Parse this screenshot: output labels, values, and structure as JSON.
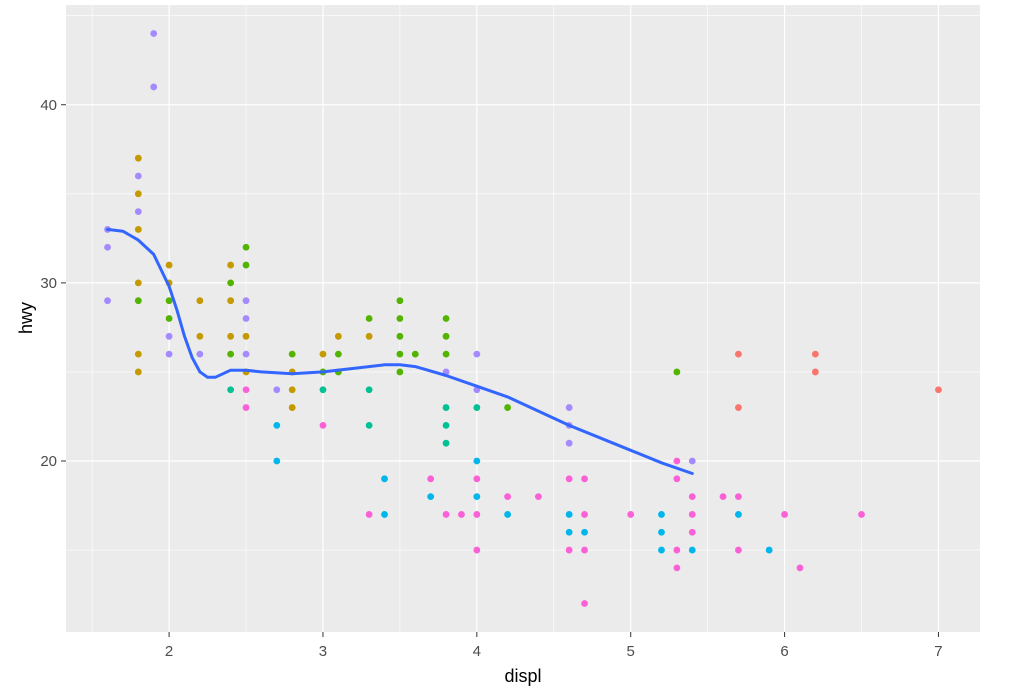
{
  "chart_data": {
    "type": "scatter",
    "xlabel": "displ",
    "ylabel": "hwy",
    "xlim": [
      1.33,
      7.27
    ],
    "ylim": [
      10.4,
      45.6
    ],
    "x_ticks": [
      2,
      3,
      4,
      5,
      6,
      7
    ],
    "y_ticks": [
      20,
      30,
      40
    ],
    "grid": true,
    "legend": "none",
    "colors": {
      "panel": "#EBEBEB",
      "grid": "#FFFFFF",
      "red": "#F8766D",
      "olive": "#C49A00",
      "green": "#53B400",
      "teal": "#00C094",
      "blue": "#00B6EB",
      "purple": "#A58AFF",
      "pink": "#FB61D7",
      "smooth": "#3366FF"
    },
    "points": [
      {
        "x": 1.6,
        "y": 33,
        "c": "purple"
      },
      {
        "x": 1.6,
        "y": 32,
        "c": "purple"
      },
      {
        "x": 1.6,
        "y": 29,
        "c": "purple"
      },
      {
        "x": 1.9,
        "y": 44,
        "c": "purple"
      },
      {
        "x": 1.9,
        "y": 41,
        "c": "purple"
      },
      {
        "x": 1.8,
        "y": 37,
        "c": "olive"
      },
      {
        "x": 1.8,
        "y": 36,
        "c": "purple"
      },
      {
        "x": 1.8,
        "y": 35,
        "c": "olive"
      },
      {
        "x": 1.8,
        "y": 34,
        "c": "purple"
      },
      {
        "x": 1.8,
        "y": 33,
        "c": "olive"
      },
      {
        "x": 1.8,
        "y": 30,
        "c": "olive"
      },
      {
        "x": 1.8,
        "y": 29,
        "c": "green"
      },
      {
        "x": 1.8,
        "y": 26,
        "c": "olive"
      },
      {
        "x": 1.8,
        "y": 25,
        "c": "olive"
      },
      {
        "x": 2.0,
        "y": 31,
        "c": "olive"
      },
      {
        "x": 2.0,
        "y": 30,
        "c": "olive"
      },
      {
        "x": 2.0,
        "y": 29,
        "c": "green"
      },
      {
        "x": 2.0,
        "y": 28,
        "c": "green"
      },
      {
        "x": 2.0,
        "y": 27,
        "c": "purple"
      },
      {
        "x": 2.0,
        "y": 26,
        "c": "purple"
      },
      {
        "x": 2.2,
        "y": 29,
        "c": "olive"
      },
      {
        "x": 2.2,
        "y": 27,
        "c": "olive"
      },
      {
        "x": 2.2,
        "y": 26,
        "c": "purple"
      },
      {
        "x": 2.4,
        "y": 31,
        "c": "olive"
      },
      {
        "x": 2.4,
        "y": 30,
        "c": "green"
      },
      {
        "x": 2.4,
        "y": 29,
        "c": "olive"
      },
      {
        "x": 2.4,
        "y": 27,
        "c": "olive"
      },
      {
        "x": 2.4,
        "y": 26,
        "c": "green"
      },
      {
        "x": 2.4,
        "y": 24,
        "c": "teal"
      },
      {
        "x": 2.5,
        "y": 32,
        "c": "green"
      },
      {
        "x": 2.5,
        "y": 31,
        "c": "green"
      },
      {
        "x": 2.5,
        "y": 29,
        "c": "purple"
      },
      {
        "x": 2.5,
        "y": 28,
        "c": "purple"
      },
      {
        "x": 2.5,
        "y": 27,
        "c": "olive"
      },
      {
        "x": 2.5,
        "y": 26,
        "c": "purple"
      },
      {
        "x": 2.5,
        "y": 25,
        "c": "olive"
      },
      {
        "x": 2.5,
        "y": 24,
        "c": "pink"
      },
      {
        "x": 2.5,
        "y": 23,
        "c": "pink"
      },
      {
        "x": 2.7,
        "y": 24,
        "c": "purple"
      },
      {
        "x": 2.7,
        "y": 22,
        "c": "blue"
      },
      {
        "x": 2.7,
        "y": 20,
        "c": "blue"
      },
      {
        "x": 2.8,
        "y": 26,
        "c": "green"
      },
      {
        "x": 2.8,
        "y": 25,
        "c": "olive"
      },
      {
        "x": 2.8,
        "y": 24,
        "c": "olive"
      },
      {
        "x": 2.8,
        "y": 23,
        "c": "olive"
      },
      {
        "x": 3.0,
        "y": 26,
        "c": "olive"
      },
      {
        "x": 3.0,
        "y": 25,
        "c": "green"
      },
      {
        "x": 3.0,
        "y": 24,
        "c": "teal"
      },
      {
        "x": 3.0,
        "y": 22,
        "c": "pink"
      },
      {
        "x": 3.1,
        "y": 27,
        "c": "olive"
      },
      {
        "x": 3.1,
        "y": 26,
        "c": "green"
      },
      {
        "x": 3.1,
        "y": 25,
        "c": "green"
      },
      {
        "x": 3.3,
        "y": 28,
        "c": "green"
      },
      {
        "x": 3.3,
        "y": 27,
        "c": "olive"
      },
      {
        "x": 3.3,
        "y": 24,
        "c": "teal"
      },
      {
        "x": 3.3,
        "y": 22,
        "c": "teal"
      },
      {
        "x": 3.3,
        "y": 17,
        "c": "pink"
      },
      {
        "x": 3.4,
        "y": 19,
        "c": "blue"
      },
      {
        "x": 3.4,
        "y": 17,
        "c": "blue"
      },
      {
        "x": 3.5,
        "y": 29,
        "c": "green"
      },
      {
        "x": 3.5,
        "y": 28,
        "c": "green"
      },
      {
        "x": 3.5,
        "y": 27,
        "c": "green"
      },
      {
        "x": 3.5,
        "y": 26,
        "c": "green"
      },
      {
        "x": 3.5,
        "y": 25,
        "c": "green"
      },
      {
        "x": 3.6,
        "y": 26,
        "c": "green"
      },
      {
        "x": 3.7,
        "y": 19,
        "c": "pink"
      },
      {
        "x": 3.7,
        "y": 18,
        "c": "blue"
      },
      {
        "x": 3.8,
        "y": 28,
        "c": "green"
      },
      {
        "x": 3.8,
        "y": 27,
        "c": "green"
      },
      {
        "x": 3.8,
        "y": 26,
        "c": "green"
      },
      {
        "x": 3.8,
        "y": 25,
        "c": "purple"
      },
      {
        "x": 3.8,
        "y": 23,
        "c": "teal"
      },
      {
        "x": 3.8,
        "y": 22,
        "c": "teal"
      },
      {
        "x": 3.8,
        "y": 21,
        "c": "teal"
      },
      {
        "x": 3.8,
        "y": 17,
        "c": "pink"
      },
      {
        "x": 3.9,
        "y": 17,
        "c": "pink"
      },
      {
        "x": 4.0,
        "y": 26,
        "c": "purple"
      },
      {
        "x": 4.0,
        "y": 24,
        "c": "purple"
      },
      {
        "x": 4.0,
        "y": 23,
        "c": "teal"
      },
      {
        "x": 4.0,
        "y": 20,
        "c": "blue"
      },
      {
        "x": 4.0,
        "y": 19,
        "c": "pink"
      },
      {
        "x": 4.0,
        "y": 18,
        "c": "blue"
      },
      {
        "x": 4.0,
        "y": 17,
        "c": "pink"
      },
      {
        "x": 4.0,
        "y": 15,
        "c": "pink"
      },
      {
        "x": 4.2,
        "y": 23,
        "c": "green"
      },
      {
        "x": 4.2,
        "y": 18,
        "c": "pink"
      },
      {
        "x": 4.2,
        "y": 17,
        "c": "blue"
      },
      {
        "x": 4.4,
        "y": 18,
        "c": "pink"
      },
      {
        "x": 4.6,
        "y": 23,
        "c": "purple"
      },
      {
        "x": 4.6,
        "y": 22,
        "c": "purple"
      },
      {
        "x": 4.6,
        "y": 21,
        "c": "purple"
      },
      {
        "x": 4.6,
        "y": 19,
        "c": "pink"
      },
      {
        "x": 4.6,
        "y": 17,
        "c": "blue"
      },
      {
        "x": 4.6,
        "y": 16,
        "c": "blue"
      },
      {
        "x": 4.6,
        "y": 15,
        "c": "pink"
      },
      {
        "x": 4.7,
        "y": 19,
        "c": "pink"
      },
      {
        "x": 4.7,
        "y": 17,
        "c": "pink"
      },
      {
        "x": 4.7,
        "y": 16,
        "c": "blue"
      },
      {
        "x": 4.7,
        "y": 15,
        "c": "pink"
      },
      {
        "x": 4.7,
        "y": 12,
        "c": "pink"
      },
      {
        "x": 5.0,
        "y": 17,
        "c": "pink"
      },
      {
        "x": 5.2,
        "y": 17,
        "c": "blue"
      },
      {
        "x": 5.2,
        "y": 16,
        "c": "blue"
      },
      {
        "x": 5.2,
        "y": 15,
        "c": "blue"
      },
      {
        "x": 5.3,
        "y": 25,
        "c": "green"
      },
      {
        "x": 5.3,
        "y": 20,
        "c": "pink"
      },
      {
        "x": 5.3,
        "y": 19,
        "c": "pink"
      },
      {
        "x": 5.3,
        "y": 15,
        "c": "pink"
      },
      {
        "x": 5.3,
        "y": 14,
        "c": "pink"
      },
      {
        "x": 5.4,
        "y": 20,
        "c": "purple"
      },
      {
        "x": 5.4,
        "y": 18,
        "c": "pink"
      },
      {
        "x": 5.4,
        "y": 17,
        "c": "pink"
      },
      {
        "x": 5.4,
        "y": 16,
        "c": "pink"
      },
      {
        "x": 5.4,
        "y": 15,
        "c": "blue"
      },
      {
        "x": 5.6,
        "y": 18,
        "c": "pink"
      },
      {
        "x": 5.7,
        "y": 26,
        "c": "red"
      },
      {
        "x": 5.7,
        "y": 23,
        "c": "red"
      },
      {
        "x": 5.7,
        "y": 18,
        "c": "pink"
      },
      {
        "x": 5.7,
        "y": 17,
        "c": "blue"
      },
      {
        "x": 5.7,
        "y": 15,
        "c": "pink"
      },
      {
        "x": 5.9,
        "y": 15,
        "c": "blue"
      },
      {
        "x": 6.0,
        "y": 17,
        "c": "pink"
      },
      {
        "x": 6.1,
        "y": 14,
        "c": "pink"
      },
      {
        "x": 6.2,
        "y": 26,
        "c": "red"
      },
      {
        "x": 6.2,
        "y": 25,
        "c": "red"
      },
      {
        "x": 6.5,
        "y": 17,
        "c": "pink"
      },
      {
        "x": 7.0,
        "y": 24,
        "c": "red"
      }
    ],
    "smooth": {
      "x": [
        1.6,
        1.7,
        1.8,
        1.9,
        2.0,
        2.05,
        2.1,
        2.15,
        2.2,
        2.25,
        2.3,
        2.4,
        2.5,
        2.6,
        2.8,
        3.0,
        3.2,
        3.4,
        3.5,
        3.6,
        3.8,
        4.0,
        4.2,
        4.4,
        4.6,
        4.8,
        5.0,
        5.2,
        5.4
      ],
      "y": [
        33.0,
        32.9,
        32.4,
        31.6,
        29.8,
        28.5,
        27.0,
        25.8,
        25.0,
        24.7,
        24.7,
        25.1,
        25.1,
        25.0,
        24.9,
        25.0,
        25.2,
        25.4,
        25.4,
        25.3,
        24.8,
        24.2,
        23.6,
        22.8,
        22.0,
        21.3,
        20.6,
        19.9,
        19.3
      ]
    }
  }
}
